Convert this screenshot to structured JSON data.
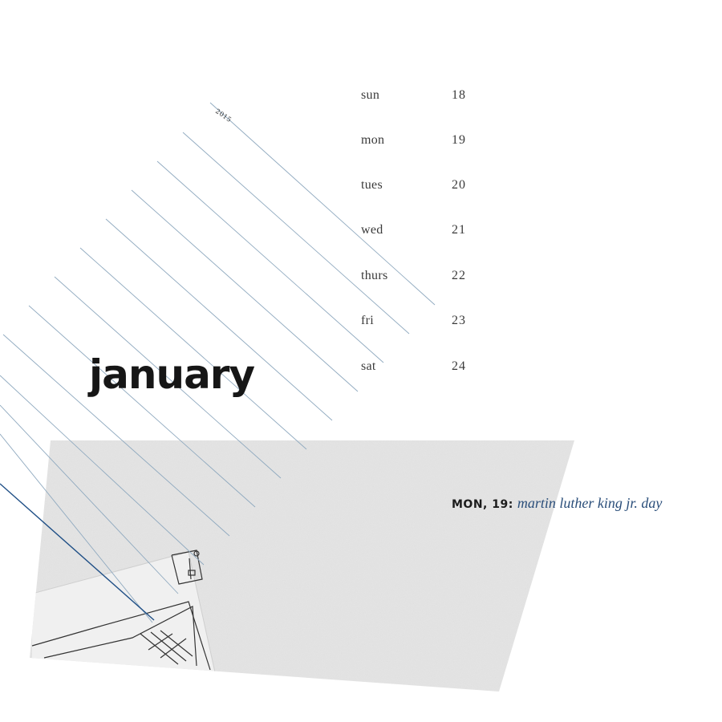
{
  "calendar": {
    "year": "2015",
    "month": "january",
    "days": [
      {
        "name": "sun",
        "date": "18"
      },
      {
        "name": "mon",
        "date": "19"
      },
      {
        "name": "tues",
        "date": "20"
      },
      {
        "name": "wed",
        "date": "21"
      },
      {
        "name": "thurs",
        "date": "22"
      },
      {
        "name": "fri",
        "date": "23"
      },
      {
        "name": "sat",
        "date": "24"
      }
    ]
  },
  "holiday": {
    "date_label": "MON, 19:",
    "name": "martin luther king jr. day"
  },
  "colors": {
    "line": "#8fa9bf",
    "accent_line": "#1f4f86",
    "holiday_text": "#2a4e7a"
  }
}
